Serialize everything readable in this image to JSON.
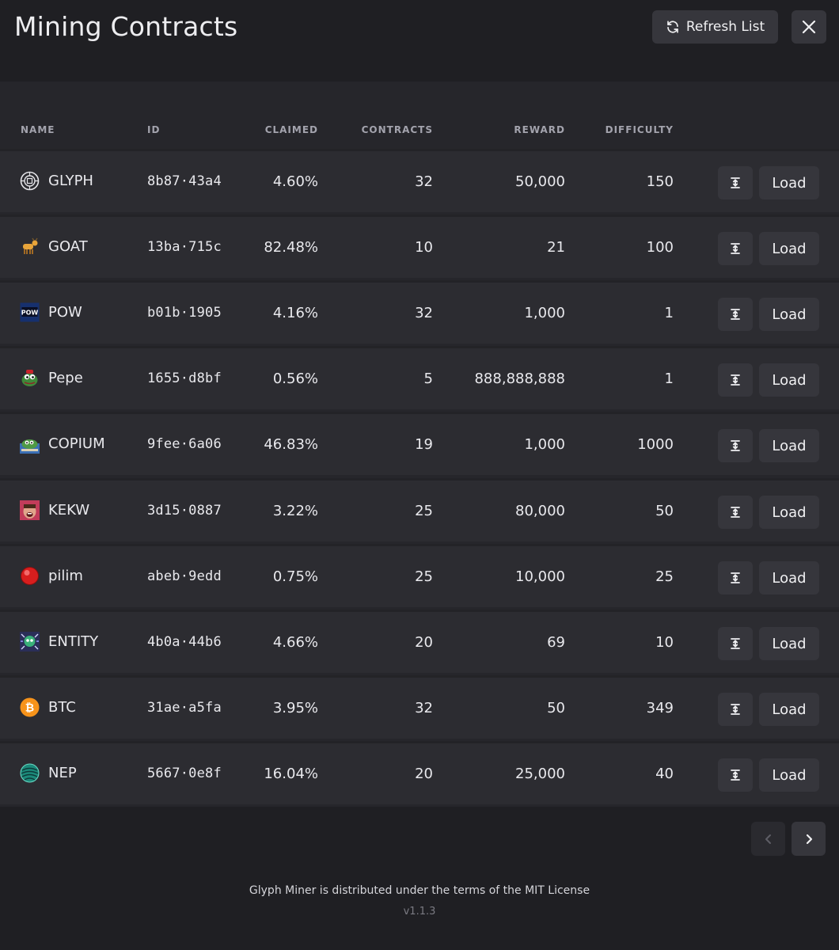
{
  "header": {
    "title": "Mining Contracts",
    "refresh_label": "Refresh List",
    "close_icon": "close-icon"
  },
  "table": {
    "columns": [
      "NAME",
      "ID",
      "CLAIMED",
      "CONTRACTS",
      "REWARD",
      "DIFFICULTY"
    ],
    "load_label": "Load",
    "rows": [
      {
        "name": "GLYPH",
        "icon": "glyph-icon",
        "id": "8b87·43a4",
        "claimed": "4.60%",
        "contracts": "32",
        "reward": "50,000",
        "difficulty": "150"
      },
      {
        "name": "GOAT",
        "icon": "goat-icon",
        "id": "13ba·715c",
        "claimed": "82.48%",
        "contracts": "10",
        "reward": "21",
        "difficulty": "100"
      },
      {
        "name": "POW",
        "icon": "pow-icon",
        "id": "b01b·1905",
        "claimed": "4.16%",
        "contracts": "32",
        "reward": "1,000",
        "difficulty": "1"
      },
      {
        "name": "Pepe",
        "icon": "pepe-icon",
        "id": "1655·d8bf",
        "claimed": "0.56%",
        "contracts": "5",
        "reward": "888,888,888",
        "difficulty": "1"
      },
      {
        "name": "COPIUM",
        "icon": "copium-icon",
        "id": "9fee·6a06",
        "claimed": "46.83%",
        "contracts": "19",
        "reward": "1,000",
        "difficulty": "1000"
      },
      {
        "name": "KEKW",
        "icon": "kekw-icon",
        "id": "3d15·0887",
        "claimed": "3.22%",
        "contracts": "25",
        "reward": "80,000",
        "difficulty": "50"
      },
      {
        "name": "pilim",
        "icon": "pilim-icon",
        "id": "abeb·9edd",
        "claimed": "0.75%",
        "contracts": "25",
        "reward": "10,000",
        "difficulty": "25"
      },
      {
        "name": "ENTITY",
        "icon": "entity-icon",
        "id": "4b0a·44b6",
        "claimed": "4.66%",
        "contracts": "20",
        "reward": "69",
        "difficulty": "10"
      },
      {
        "name": "BTC",
        "icon": "btc-icon",
        "id": "31ae·a5fa",
        "claimed": "3.95%",
        "contracts": "32",
        "reward": "50",
        "difficulty": "349"
      },
      {
        "name": "NEP",
        "icon": "nep-icon",
        "id": "5667·0e8f",
        "claimed": "16.04%",
        "contracts": "20",
        "reward": "25,000",
        "difficulty": "40"
      }
    ]
  },
  "pagination": {
    "prev_icon": "chevron-left-icon",
    "next_icon": "chevron-right-icon"
  },
  "footer": {
    "license": "Glyph Miner is distributed under the terms of the MIT License",
    "version": "v1.1.3"
  }
}
